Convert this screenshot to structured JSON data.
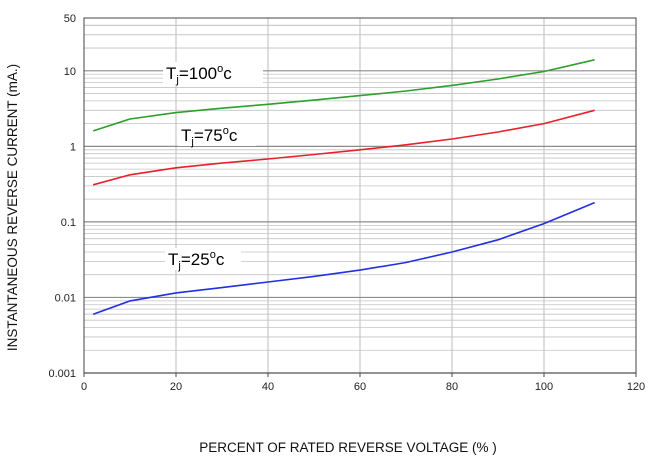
{
  "chart_data": {
    "type": "line",
    "title": "",
    "xlabel": "PERCENT OF RATED REVERSE VOLTAGE (% )",
    "ylabel": "INSTANTANEOUS REVERSE CURRENT (mA.)",
    "xlim": [
      0,
      120
    ],
    "ylim": [
      0.001,
      50
    ],
    "y_scale": "log",
    "grid": true,
    "x_ticks": [
      0,
      20,
      40,
      60,
      80,
      100,
      120
    ],
    "x_tick_labels": [
      "0",
      "20",
      "40",
      "60",
      "80",
      "100",
      "120"
    ],
    "y_ticks": [
      0.001,
      0.01,
      0.1,
      1,
      10,
      50
    ],
    "y_tick_labels": [
      "0.001",
      "0.01",
      "0.1",
      "1",
      "10",
      "50"
    ],
    "series": [
      {
        "label_main": "T",
        "label_sub": "j",
        "label_rest": "=100",
        "label_sup": "o",
        "label_end": "c",
        "color": "#2e9e2e",
        "x": [
          2,
          10,
          20,
          30,
          40,
          50,
          60,
          70,
          80,
          90,
          100,
          111
        ],
        "y": [
          1.6,
          2.3,
          2.8,
          3.2,
          3.6,
          4.1,
          4.7,
          5.4,
          6.4,
          7.8,
          9.8,
          14
        ]
      },
      {
        "label_main": "T",
        "label_sub": "j",
        "label_rest": "=75",
        "label_sup": "o",
        "label_end": "c",
        "color": "#e8202a",
        "x": [
          2,
          10,
          20,
          30,
          40,
          50,
          60,
          70,
          80,
          90,
          100,
          111
        ],
        "y": [
          0.31,
          0.42,
          0.52,
          0.6,
          0.68,
          0.78,
          0.9,
          1.05,
          1.25,
          1.55,
          2.0,
          3.0
        ]
      },
      {
        "label_main": "T",
        "label_sub": "j",
        "label_rest": "=25",
        "label_sup": "o",
        "label_end": "c",
        "color": "#2230e0",
        "x": [
          2,
          10,
          20,
          30,
          40,
          50,
          60,
          70,
          80,
          90,
          100,
          111
        ],
        "y": [
          0.006,
          0.009,
          0.0115,
          0.0135,
          0.016,
          0.019,
          0.023,
          0.029,
          0.04,
          0.058,
          0.095,
          0.18
        ]
      }
    ]
  }
}
